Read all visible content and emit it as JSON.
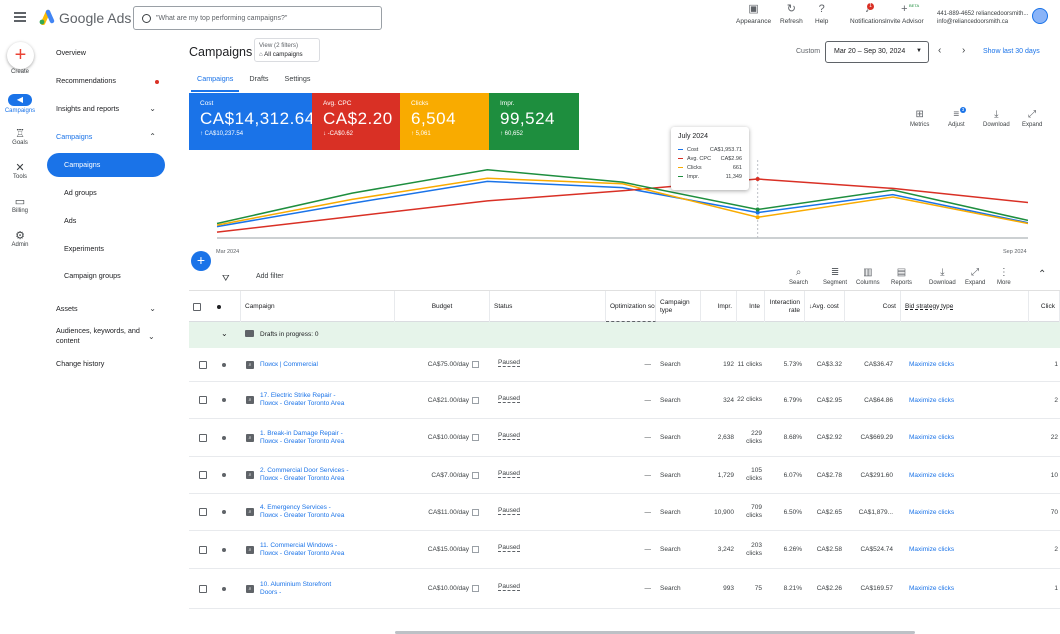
{
  "app": {
    "brand": "Google Ads",
    "search_placeholder": "\"What are my top performing campaigns?\""
  },
  "topbar": {
    "buttons": [
      {
        "label": "Appearance",
        "icon": "appearance-icon"
      },
      {
        "label": "Refresh",
        "icon": "refresh-icon"
      },
      {
        "label": "Help",
        "icon": "help-icon"
      },
      {
        "label": "Notifications",
        "icon": "bell-icon",
        "badge": "1"
      },
      {
        "label": "Invite Advisor",
        "icon": "add-person-icon",
        "badge": "BETA"
      }
    ],
    "account_phone": "441-889-4652 reliancedoorsmith...",
    "account_email": "info@reliancedoorsmith.ca"
  },
  "rail": [
    {
      "label": "Create",
      "icon": "plus-icon"
    },
    {
      "label": "Campaigns",
      "icon": "megaphone-icon",
      "selected": true
    },
    {
      "label": "Goals",
      "icon": "trophy-icon"
    },
    {
      "label": "Tools",
      "icon": "tools-icon"
    },
    {
      "label": "Billing",
      "icon": "credit-card-icon"
    },
    {
      "label": "Admin",
      "icon": "gear-icon"
    }
  ],
  "nav": {
    "overview": "Overview",
    "recommendations": "Recommendations",
    "insights": "Insights and reports",
    "campaigns_group": "Campaigns",
    "campaigns": "Campaigns",
    "ad_groups": "Ad groups",
    "ads": "Ads",
    "experiments": "Experiments",
    "campaign_groups": "Campaign groups",
    "assets": "Assets",
    "audiences": "Audiences, keywords, and content",
    "change_history": "Change history"
  },
  "header": {
    "title": "Campaigns",
    "view_filters": "View (2 filters)",
    "view_value": "All campaigns",
    "custom": "Custom",
    "date_range": "Mar 20 – Sep 30, 2024",
    "show_last": "Show last 30 days"
  },
  "tabs": [
    "Campaigns",
    "Drafts",
    "Settings"
  ],
  "scorecards": [
    {
      "label": "Cost",
      "value": "CA$14,312.64",
      "delta": "CA$10,237.54",
      "dir": "up",
      "color": "#1a73e8"
    },
    {
      "label": "Avg. CPC",
      "value": "CA$2.20",
      "delta": "-CA$0.62",
      "dir": "down",
      "color": "#d93025"
    },
    {
      "label": "Clicks",
      "value": "6,504",
      "delta": "5,061",
      "dir": "up",
      "color": "#f9ab00"
    },
    {
      "label": "Impr.",
      "value": "99,524",
      "delta": "60,652",
      "dir": "up",
      "color": "#1e8e3e"
    }
  ],
  "chart_tools": [
    {
      "label": "Metrics",
      "icon": "metrics-icon"
    },
    {
      "label": "Adjust",
      "icon": "adjust-icon",
      "badge": "3"
    },
    {
      "label": "Download",
      "icon": "download-icon"
    },
    {
      "label": "Expand",
      "icon": "expand-icon"
    }
  ],
  "chart_data": {
    "type": "line",
    "x": [
      "Mar 2024",
      "Apr 2024",
      "May 2024",
      "Jun 2024",
      "Jul 2024",
      "Aug 2024",
      "Sep 2024"
    ],
    "x_ticks": [
      "Mar 2024",
      "Sep 2024"
    ],
    "series": [
      {
        "name": "Cost",
        "color": "#1a73e8",
        "values": [
          0.12,
          0.42,
          0.7,
          0.62,
          0.3,
          0.53,
          0.17
        ]
      },
      {
        "name": "Avg. CPC",
        "color": "#d93025",
        "values": [
          0.05,
          0.25,
          0.45,
          0.58,
          0.73,
          0.61,
          0.43
        ]
      },
      {
        "name": "Clicks",
        "color": "#f9ab00",
        "values": [
          0.14,
          0.47,
          0.74,
          0.67,
          0.24,
          0.5,
          0.16
        ]
      },
      {
        "name": "Impr.",
        "color": "#1e8e3e",
        "values": [
          0.16,
          0.55,
          0.85,
          0.69,
          0.34,
          0.59,
          0.2
        ]
      }
    ],
    "tooltip": {
      "title": "July 2024",
      "rows": [
        {
          "name": "Cost",
          "value": "CA$1,953.71"
        },
        {
          "name": "Avg. CPC",
          "value": "CA$2.96"
        },
        {
          "name": "Clicks",
          "value": "661"
        },
        {
          "name": "Impr.",
          "value": "11,349"
        }
      ]
    }
  },
  "table_tools": {
    "add_filter": "Add filter",
    "buttons": [
      {
        "label": "Search",
        "icon": "search-icon"
      },
      {
        "label": "Segment",
        "icon": "segment-icon"
      },
      {
        "label": "Columns",
        "icon": "columns-icon"
      },
      {
        "label": "Reports",
        "icon": "reports-icon"
      },
      {
        "label": "Download",
        "icon": "download-icon"
      },
      {
        "label": "Expand",
        "icon": "expand-icon"
      },
      {
        "label": "More",
        "icon": "more-vert-icon"
      }
    ]
  },
  "table": {
    "headers": [
      "Campaign",
      "Budget",
      "Status",
      "Optimization score",
      "Campaign type",
      "Impr.",
      "Inte",
      "Interaction rate",
      "Avg. cost",
      "Cost",
      "Bid strategy type",
      "Click"
    ],
    "draft_text": "Drafts in progress: 0",
    "rows": [
      {
        "name": "Поиск | Commercial",
        "budget": "CA$75.00/day",
        "status": "Paused",
        "opt": "—",
        "type": "Search",
        "impr": "192",
        "inter": "11 clicks",
        "rate": "5.73%",
        "avg": "CA$3.32",
        "cost": "CA$36.47",
        "bid": "Maximize clicks",
        "click": "1"
      },
      {
        "name": "17. Electric Strike Repair - Поиск - Greater Toronto Area",
        "budget": "CA$21.00/day",
        "status": "Paused",
        "opt": "—",
        "type": "Search",
        "impr": "324",
        "inter": "22 clicks",
        "rate": "6.79%",
        "avg": "CA$2.95",
        "cost": "CA$64.86",
        "bid": "Maximize clicks",
        "click": "2"
      },
      {
        "name": "1. Break-in Damage Repair - Поиск - Greater Toronto Area",
        "budget": "CA$10.00/day",
        "status": "Paused",
        "opt": "—",
        "type": "Search",
        "impr": "2,638",
        "inter": "229 clicks",
        "rate": "8.68%",
        "avg": "CA$2.92",
        "cost": "CA$669.29",
        "bid": "Maximize clicks",
        "click": "22"
      },
      {
        "name": "2. Commercial Door Services - Поиск - Greater Toronto Area",
        "budget": "CA$7.00/day",
        "status": "Paused",
        "opt": "—",
        "type": "Search",
        "impr": "1,729",
        "inter": "105 clicks",
        "rate": "6.07%",
        "avg": "CA$2.78",
        "cost": "CA$291.60",
        "bid": "Maximize clicks",
        "click": "10"
      },
      {
        "name": "4. Emergency Services - Поиск - Greater Toronto Area",
        "budget": "CA$11.00/day",
        "status": "Paused",
        "opt": "—",
        "type": "Search",
        "impr": "10,900",
        "inter": "709 clicks",
        "rate": "6.50%",
        "avg": "CA$2.65",
        "cost": "CA$1,879...",
        "bid": "Maximize clicks",
        "click": "70"
      },
      {
        "name": "11. Commercial Windows - Поиск - Greater Toronto Area",
        "budget": "CA$15.00/day",
        "status": "Paused",
        "opt": "—",
        "type": "Search",
        "impr": "3,242",
        "inter": "203 clicks",
        "rate": "6.26%",
        "avg": "CA$2.58",
        "cost": "CA$524.74",
        "bid": "Maximize clicks",
        "click": "2"
      },
      {
        "name": "10. Aluminium Storefront Doors -",
        "budget": "CA$10.00/day",
        "status": "Paused",
        "opt": "—",
        "type": "Search",
        "impr": "993",
        "inter": "75",
        "rate": "8.21%",
        "avg": "CA$2.26",
        "cost": "CA$169.57",
        "bid": "Maximize clicks",
        "click": "1"
      }
    ]
  }
}
